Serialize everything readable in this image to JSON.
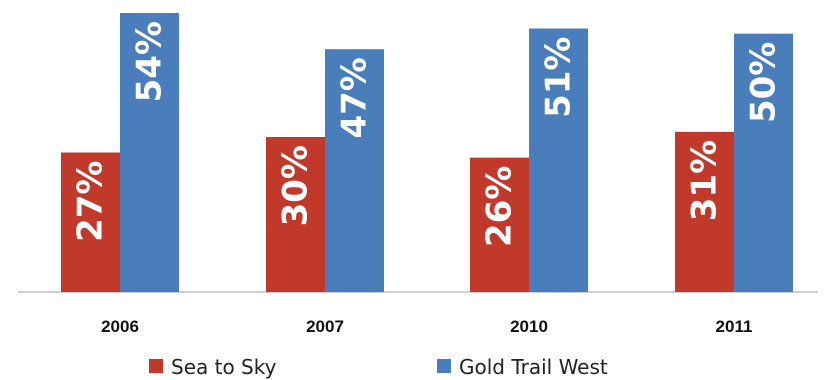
{
  "chart_data": {
    "type": "bar",
    "categories": [
      "2006",
      "2007",
      "2010",
      "2011"
    ],
    "series": [
      {
        "name": "Sea to Sky",
        "values": [
          27,
          30,
          26,
          31
        ],
        "labels": [
          "27%",
          "30%",
          "26%",
          "31%"
        ],
        "color": "#c0392b"
      },
      {
        "name": "Gold Trail West",
        "values": [
          54,
          47,
          51,
          50
        ],
        "labels": [
          "54%",
          "47%",
          "51%",
          "50%"
        ],
        "color": "#4a7ebb"
      }
    ],
    "ylim": [
      0,
      54
    ],
    "grid": false,
    "legend_position": "bottom",
    "data_label_orientation": "vertical"
  }
}
